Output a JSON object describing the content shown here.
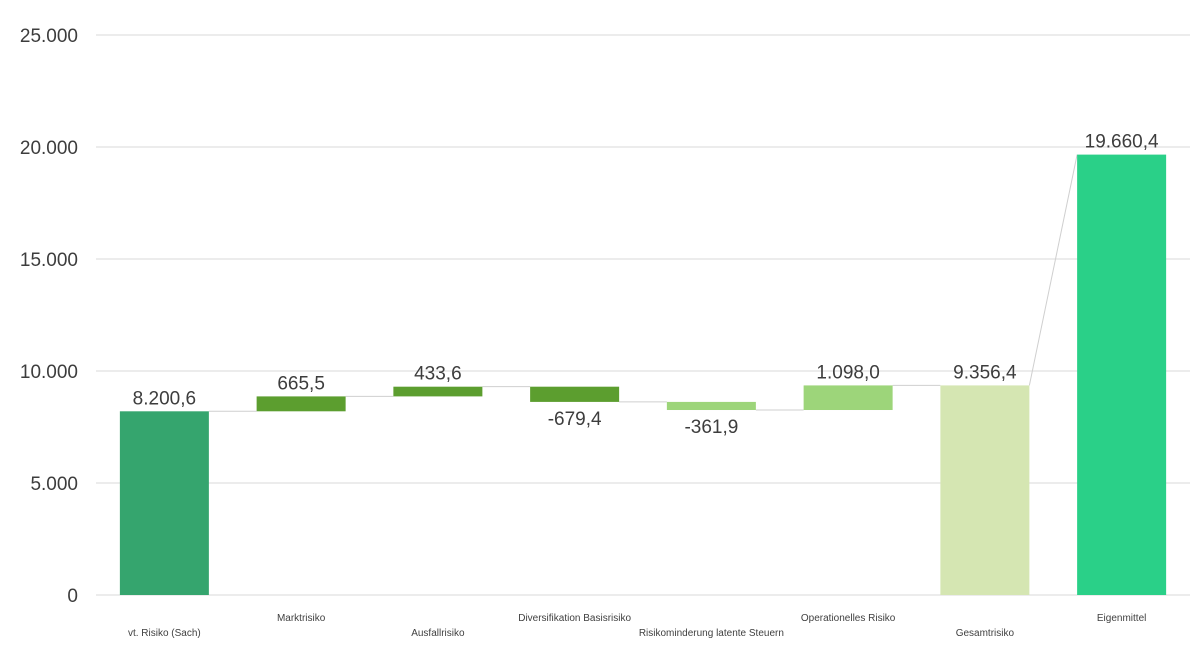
{
  "chart_data": {
    "type": "waterfall",
    "categories": [
      "vt. Risiko (Sach)",
      "Marktrisiko",
      "Ausfallrisiko",
      "Diversifikation Basisrisiko",
      "Risikominderung latente Steuern",
      "Operationelles Risiko",
      "Gesamtrisiko",
      "Eigenmittel"
    ],
    "values": [
      8200.6,
      665.5,
      433.6,
      -679.4,
      -361.9,
      1098.0,
      9356.4,
      19660.4
    ],
    "kinds": [
      "total",
      "delta",
      "delta",
      "delta",
      "delta",
      "delta",
      "total",
      "total"
    ],
    "data_labels": [
      "8.200,6",
      "665,5",
      "433,6",
      "-679,4",
      "-361,9",
      "1.098,0",
      "9.356,4",
      "19.660,4"
    ],
    "colors": [
      "#35a56e",
      "#5c9e2f",
      "#5c9e2f",
      "#5c9e2f",
      "#9dd57a",
      "#9dd57a",
      "#d5e6b2",
      "#2ad088"
    ],
    "ylim": [
      0,
      25000
    ],
    "yticks": [
      0,
      5000,
      10000,
      15000,
      20000,
      25000
    ],
    "ytick_labels": [
      "0",
      "5.000",
      "10.000",
      "15.000",
      "20.000",
      "25.000"
    ],
    "grid": true,
    "title": "",
    "xlabel": "",
    "ylabel": ""
  }
}
